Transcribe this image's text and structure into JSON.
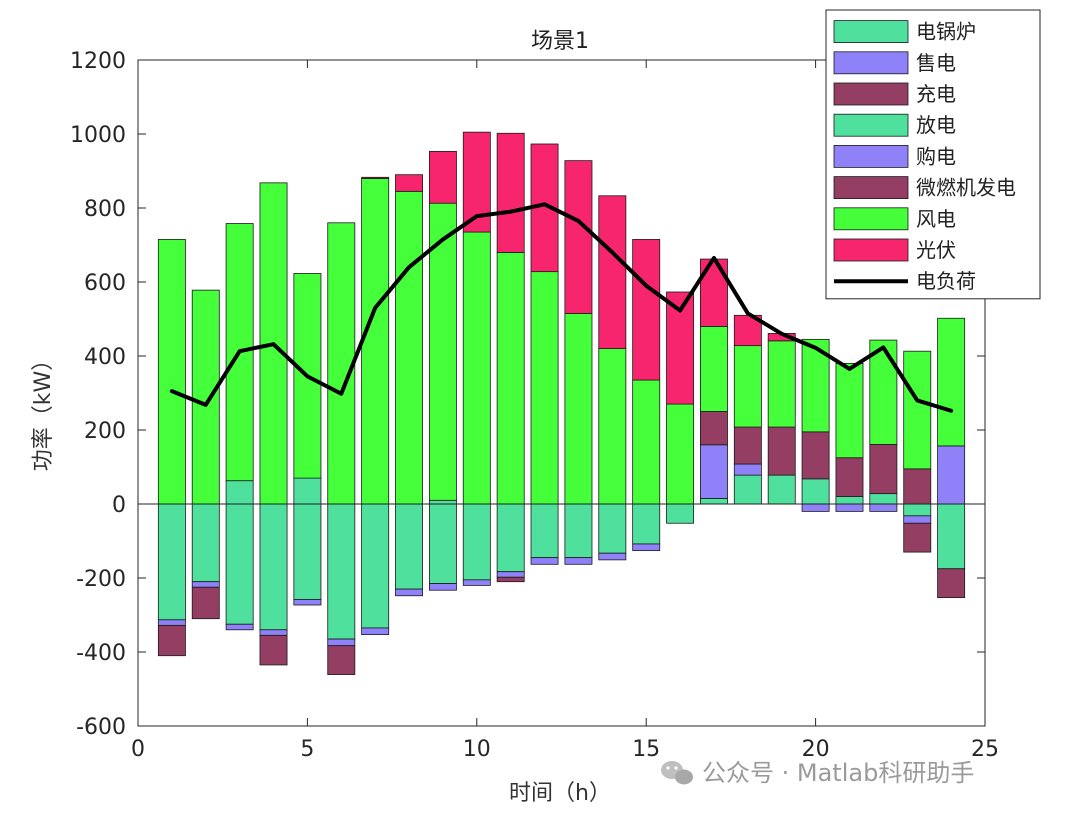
{
  "watermark": "公众号 · Matlab科研助手",
  "chart_data": {
    "type": "bar",
    "stacked": true,
    "title": "场景1",
    "xlabel": "时间（h）",
    "ylabel": "功率（kW）",
    "xlim": [
      0,
      25
    ],
    "ylim": [
      -600,
      1200
    ],
    "xticks": [
      0,
      5,
      10,
      15,
      20,
      25
    ],
    "yticks": [
      -600,
      -400,
      -200,
      0,
      200,
      400,
      600,
      800,
      1000,
      1200
    ],
    "grid": false,
    "legend_position": "top-right",
    "x": [
      1,
      2,
      3,
      4,
      5,
      6,
      7,
      8,
      9,
      10,
      11,
      12,
      13,
      14,
      15,
      16,
      17,
      18,
      19,
      20,
      21,
      22,
      23,
      24
    ],
    "positive_series": [
      {
        "name": "电锅炉",
        "color": "#4fe09e",
        "values": [
          0,
          0,
          63,
          0,
          70,
          0,
          0,
          0,
          10,
          0,
          0,
          0,
          0,
          0,
          0,
          0,
          15,
          78,
          78,
          68,
          20,
          28,
          0,
          0
        ]
      },
      {
        "name": "售电",
        "color": "#8f81f8",
        "values": [
          0,
          0,
          0,
          0,
          0,
          0,
          0,
          0,
          0,
          0,
          0,
          0,
          0,
          0,
          0,
          0,
          145,
          30,
          0,
          0,
          0,
          0,
          0,
          157
        ]
      },
      {
        "name": "微燃机发电",
        "color": "#943e64",
        "values": [
          0,
          0,
          0,
          0,
          0,
          0,
          0,
          0,
          0,
          0,
          0,
          0,
          0,
          0,
          0,
          0,
          90,
          100,
          130,
          127,
          105,
          133,
          95,
          0
        ]
      },
      {
        "name": "风电",
        "color": "#44ff3a",
        "values": [
          715,
          578,
          695,
          868,
          553,
          760,
          880,
          845,
          803,
          735,
          680,
          628,
          515,
          420,
          335,
          270,
          230,
          220,
          233,
          250,
          255,
          282,
          318,
          345
        ]
      },
      {
        "name": "光伏",
        "color": "#f7256e",
        "values": [
          0,
          0,
          0,
          0,
          0,
          0,
          3,
          45,
          140,
          270,
          322,
          345,
          413,
          413,
          380,
          303,
          182,
          82,
          20,
          0,
          0,
          0,
          0,
          0
        ]
      }
    ],
    "negative_series": [
      {
        "name": "放电",
        "color": "#4fe09e",
        "values": [
          -313,
          -210,
          -325,
          -340,
          -258,
          -365,
          -335,
          -230,
          -215,
          -205,
          -183,
          -145,
          -145,
          -133,
          -108,
          -52,
          0,
          0,
          0,
          0,
          0,
          0,
          -32,
          -175
        ]
      },
      {
        "name": "购电",
        "color": "#8f81f8",
        "values": [
          -15,
          -15,
          -15,
          -15,
          -15,
          -18,
          -18,
          -18,
          -18,
          -15,
          -15,
          -18,
          -18,
          -18,
          -18,
          0,
          0,
          0,
          0,
          -20,
          -20,
          -20,
          -20,
          0
        ]
      },
      {
        "name": "充电",
        "color": "#943e64",
        "values": [
          -82,
          -85,
          0,
          -80,
          0,
          -78,
          0,
          0,
          0,
          0,
          -12,
          0,
          0,
          0,
          0,
          0,
          0,
          0,
          0,
          0,
          0,
          0,
          -78,
          -78
        ]
      }
    ],
    "line_series": {
      "name": "电负荷",
      "color": "#000000",
      "values": [
        305,
        268,
        413,
        432,
        345,
        298,
        530,
        640,
        715,
        778,
        790,
        810,
        765,
        680,
        590,
        523,
        665,
        515,
        460,
        422,
        365,
        423,
        280,
        252
      ]
    },
    "legend": [
      {
        "name": "电锅炉",
        "color": "#4fe09e",
        "kind": "bar"
      },
      {
        "name": "售电",
        "color": "#8f81f8",
        "kind": "bar"
      },
      {
        "name": "充电",
        "color": "#943e64",
        "kind": "bar"
      },
      {
        "name": "放电",
        "color": "#4fe09e",
        "kind": "bar"
      },
      {
        "name": "购电",
        "color": "#8f81f8",
        "kind": "bar"
      },
      {
        "name": "微燃机发电",
        "color": "#943e64",
        "kind": "bar"
      },
      {
        "name": "风电",
        "color": "#44ff3a",
        "kind": "bar"
      },
      {
        "name": "光伏",
        "color": "#f7256e",
        "kind": "bar"
      },
      {
        "name": "电负荷",
        "color": "#000000",
        "kind": "line"
      }
    ]
  }
}
